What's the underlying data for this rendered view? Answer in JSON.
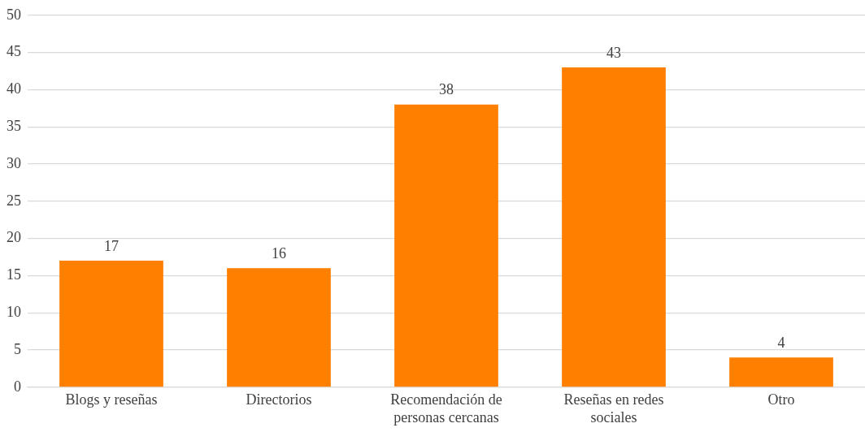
{
  "chart_data": {
    "type": "bar",
    "categories": [
      "Blogs y reseñas",
      "Directorios",
      "Recomendación de personas cercanas",
      "Reseñas en redes sociales",
      "Otro"
    ],
    "values": [
      17,
      16,
      38,
      43,
      4
    ],
    "color": "#ff8000",
    "ylim": [
      0,
      50
    ],
    "yticks": [
      0,
      5,
      10,
      15,
      20,
      25,
      30,
      35,
      40,
      45,
      50
    ],
    "grid": "y",
    "data_labels": true,
    "legend": false
  }
}
